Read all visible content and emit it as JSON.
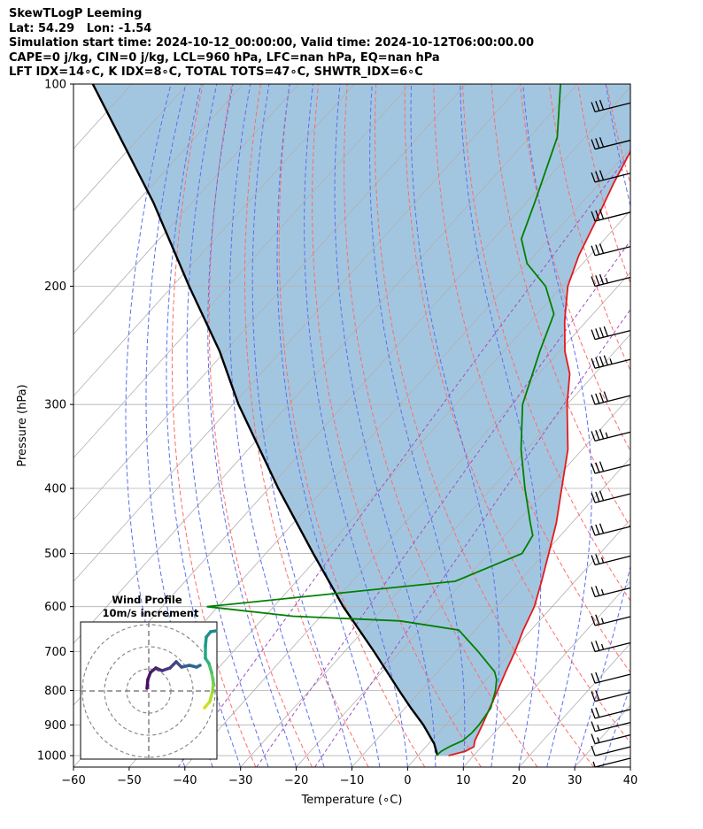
{
  "header": {
    "lines": [
      "SkewTLogP Leeming",
      "Lat: 54.29   Lon: -1.54",
      "Simulation start time: 2024-10-12_00:00:00, Valid time: 2024-10-12T06:00:00.00",
      "CAPE=0 j/kg, CIN=0 j/kg, LCL=960 hPa, LFC=nan hPa, EQ=nan hPa",
      "LFT IDX=14∘C, K IDX=8∘C, TOTAL TOTS=47∘C, SHWTR_IDX=6∘C"
    ]
  },
  "chart_data": {
    "type": "line",
    "subtype": "skew-T log-p diagram",
    "xlabel": "Temperature (∘C)",
    "ylabel": "Pressure (hPa)",
    "xlim": [
      -60,
      40
    ],
    "ylim": [
      1040,
      100
    ],
    "y_scale": "log",
    "x_ticks": [
      "−60",
      "−50",
      "−40",
      "−30",
      "−20",
      "−10",
      "0",
      "10",
      "20",
      "30",
      "40"
    ],
    "x_tick_values": [
      -60,
      -50,
      -40,
      -30,
      -20,
      -10,
      0,
      10,
      20,
      30,
      40
    ],
    "y_ticks": [
      "1000",
      "900",
      "800",
      "700",
      "600",
      "500",
      "400",
      "300",
      "200",
      "100"
    ],
    "y_tick_values": [
      1000,
      900,
      800,
      700,
      600,
      500,
      400,
      300,
      200,
      100
    ],
    "grid": true,
    "colors": {
      "temperature": "#e41a1c",
      "dewpoint": "#008000",
      "parcel": "#000000",
      "shade": "#a3c6e0",
      "dry_adiabat": "#ff6b6b",
      "moist_adiabat": "#5b6ff0",
      "mixing_ratio": "#a050c0"
    },
    "series": [
      {
        "name": "temperature",
        "p": [
          1000,
          985,
          970,
          950,
          925,
          900,
          850,
          800,
          750,
          700,
          650,
          600,
          550,
          500,
          450,
          400,
          350,
          300,
          270,
          250,
          225,
          200,
          180,
          160,
          140,
          120,
          100
        ],
        "t": [
          5.5,
          7.8,
          8.6,
          7.8,
          7.2,
          6.6,
          5.2,
          3.8,
          2.2,
          0.6,
          -1.4,
          -3.2,
          -6.0,
          -9.2,
          -12.8,
          -17.4,
          -22.6,
          -30.0,
          -34.5,
          -39.0,
          -44.0,
          -49.0,
          -52.0,
          -54.5,
          -57.5,
          -60.5,
          -63.5
        ]
      },
      {
        "name": "dewpoint",
        "p": [
          1000,
          985,
          970,
          950,
          925,
          900,
          850,
          800,
          770,
          750,
          700,
          650,
          630,
          620,
          600,
          550,
          500,
          470,
          450,
          400,
          350,
          300,
          250,
          220,
          200,
          185,
          170,
          150,
          120,
          100
        ],
        "t": [
          3.3,
          3.5,
          4.2,
          5.6,
          6.0,
          6.0,
          5.4,
          3.4,
          1.8,
          0.2,
          -6.0,
          -13.0,
          -25.0,
          -45.0,
          -62.0,
          -21.5,
          -14.0,
          -15.0,
          -17.5,
          -24.0,
          -31.0,
          -38.0,
          -43.5,
          -47.0,
          -53.0,
          -60.0,
          -65.0,
          -68.5,
          -75.0,
          -83.0
        ]
      },
      {
        "name": "parcel",
        "p": [
          1000,
          960,
          900,
          850,
          800,
          700,
          600,
          500,
          400,
          300,
          250,
          200,
          150,
          100
        ],
        "t": [
          3.5,
          1.0,
          -4.0,
          -8.9,
          -13.9,
          -24.7,
          -37.5,
          -51.5,
          -68.3,
          -89.0,
          -101.0,
          -117.0,
          -137.0,
          -167.0
        ]
      }
    ],
    "wind_barbs": {
      "p": [
        1040,
        1000,
        960,
        920,
        880,
        830,
        780,
        700,
        640,
        580,
        520,
        470,
        420,
        380,
        340,
        300,
        265,
        240,
        200,
        180,
        160,
        140,
        125,
        110
      ],
      "speed_kt": [
        5,
        10,
        15,
        15,
        20,
        20,
        20,
        25,
        25,
        25,
        25,
        30,
        30,
        30,
        35,
        40,
        45,
        40,
        35,
        30,
        30,
        30,
        30,
        30
      ]
    },
    "inset": {
      "title": "Wind Profile",
      "subtitle": "10m/s increment"
    }
  }
}
